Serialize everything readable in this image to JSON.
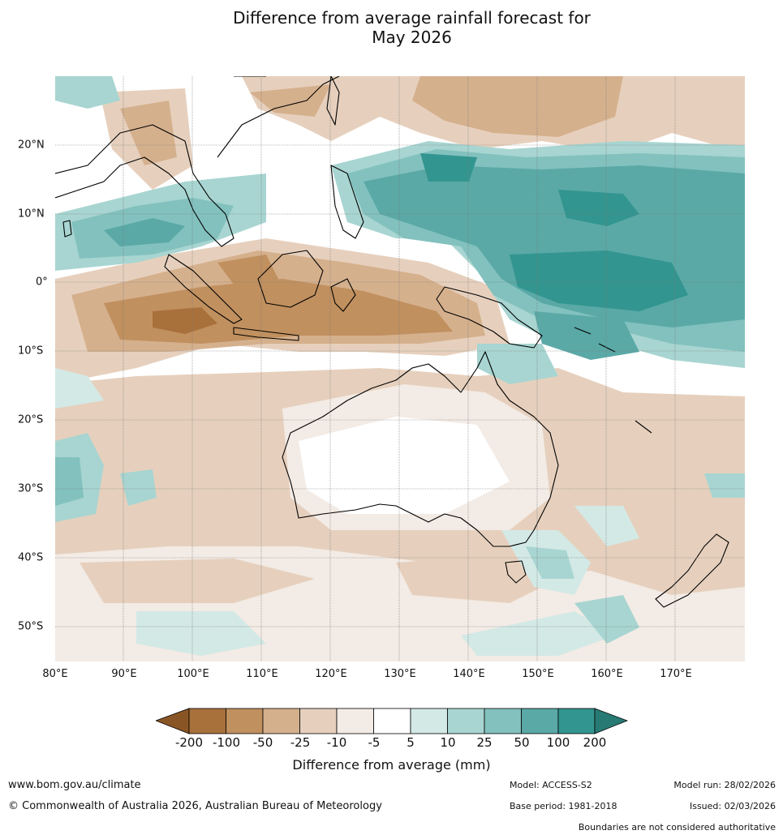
{
  "title_line1": "Difference from average rainfall forecast for",
  "title_line2": "May 2026",
  "map": {
    "lat_labels": [
      "20°N",
      "10°N",
      "0°",
      "10°S",
      "20°S",
      "30°S",
      "40°S",
      "50°S"
    ],
    "lon_labels": [
      "80°E",
      "90°E",
      "100°E",
      "110°E",
      "120°E",
      "130°E",
      "140°E",
      "150°E",
      "160°E",
      "170°E"
    ]
  },
  "legend": {
    "ticks": [
      "-200",
      "-100",
      "-50",
      "-25",
      "-10",
      "-5",
      "5",
      "10",
      "25",
      "50",
      "100",
      "200"
    ],
    "colors": [
      "#8a5525",
      "#a8703b",
      "#c1905f",
      "#d5b08d",
      "#e6d0bd",
      "#f3ebe5",
      "#ffffff",
      "#d3e9e6",
      "#a8d5d1",
      "#82c1be",
      "#5aa9a7",
      "#33958f",
      "#287a74"
    ],
    "label": "Difference from average (mm)"
  },
  "footer": {
    "website": "www.bom.gov.au/climate",
    "copyright": "© Commonwealth of Australia 2026, Australian Bureau of Meteorology",
    "model": "Model: ACCESS-S2",
    "base_period": "Base period: 1981-2018",
    "model_run": "Model run: 28/02/2026",
    "issued": "Issued: 02/03/2026",
    "disclaimer": "Boundaries are not considered authoritative"
  }
}
